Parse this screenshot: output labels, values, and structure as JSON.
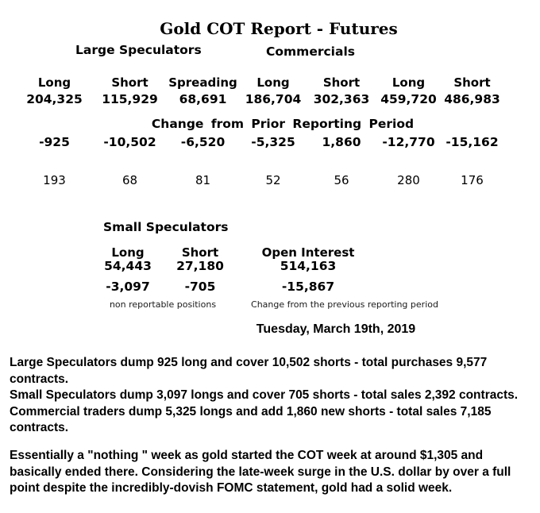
{
  "report": {
    "title": "Gold COT Report - Futures",
    "groups": {
      "large_speculators": "Large Speculators",
      "commercials": "Commercials",
      "small_speculators": "Small Speculators"
    },
    "main_table": {
      "columns": [
        "Long",
        "Short",
        "Spreading",
        "Long",
        "Short",
        "Long",
        "Short"
      ],
      "positions": [
        "204,325",
        "115,929",
        "68,691",
        "186,704",
        "302,363",
        "459,720",
        "486,983"
      ],
      "change_header": "Change from Prior Reporting Period",
      "changes": [
        "-925",
        "-10,502",
        "-6,520",
        "-5,325",
        "1,860",
        "-12,770",
        "-15,162"
      ],
      "row3": [
        "193",
        "68",
        "81",
        "52",
        "56",
        "280",
        "176"
      ]
    },
    "small_table": {
      "columns": [
        "Long",
        "Short",
        "Open Interest"
      ],
      "positions": [
        "54,443",
        "27,180",
        "514,163"
      ],
      "changes": [
        "-3,097",
        "-705",
        "-15,867"
      ],
      "footnotes": [
        "non reportable positions",
        "Change from the previous reporting period"
      ]
    },
    "date": "Tuesday, March 19th, 2019",
    "commentary": [
      {
        "lines": [
          "Large Speculators dump 925 long and cover 10,502 shorts - total purchases 9,577",
          "contracts.",
          "Small Speculators dump 3,097 longs and cover 705 shorts - total sales 2,392 contracts.",
          "Commercial traders dump 5,325 longs and add 1,860 new shorts - total sales 7,185",
          "contracts."
        ]
      },
      {
        "lines": [
          "Essentially a \"nothing \" week as gold started the COT week at around $1,305 and",
          "basically ended there. Considering the late-week surge in the U.S. dollar by over a full",
          "point despite the incredibly-dovish FOMC statement, gold had a solid week."
        ]
      }
    ]
  }
}
